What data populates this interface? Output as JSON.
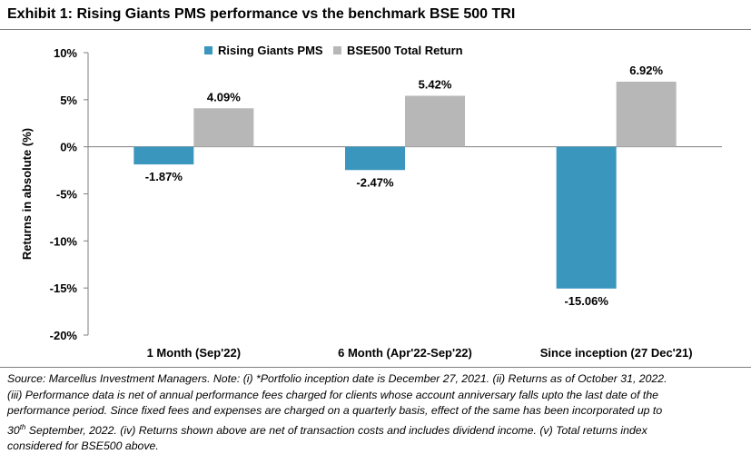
{
  "title": "Exhibit 1: Rising Giants PMS performance vs the benchmark BSE 500 TRI",
  "chart_data": {
    "type": "bar",
    "categories": [
      "1 Month (Sep'22)",
      "6 Month (Apr'22-Sep'22)",
      "Since inception (27 Dec'21)"
    ],
    "series": [
      {
        "name": "Rising Giants PMS",
        "values": [
          -1.87,
          -2.47,
          -15.06
        ],
        "labels": [
          "-1.87%",
          "-2.47%",
          "-15.06%"
        ],
        "color": "#3a96bd"
      },
      {
        "name": "BSE500 Total Return",
        "values": [
          4.09,
          5.42,
          6.92
        ],
        "labels": [
          "4.09%",
          "5.42%",
          "6.92%"
        ],
        "color": "#b7b7b7"
      }
    ],
    "ylabel": "Returns  in absolute (%)",
    "ylim": [
      -20,
      10
    ],
    "yticks": [
      10,
      5,
      0,
      -5,
      -10,
      -15,
      -20
    ],
    "ytick_labels": [
      "10%",
      "5%",
      "0%",
      "-5%",
      "-10%",
      "-15%",
      "-20%"
    ],
    "legend_position": "top",
    "grid": false
  },
  "source_note": {
    "line1": "Source: Marcellus Investment Managers. Note: (i) *Portfolio inception date is December 27, 2021. (ii) Returns as of October 31, 2022.",
    "line2": "(iii) Performance data is net of annual performance fees charged for clients whose account anniversary falls upto the last date of the",
    "line3": "performance period. Since fixed fees and expenses are charged on a quarterly basis, effect of the same has been incorporated up to",
    "line4_prefix": "30",
    "line4_sup": "th",
    "line4_rest": " September, 2022. (iv) Returns shown above are net of transaction costs and includes dividend income. (v) Total returns index",
    "line5": "considered for BSE500 above."
  }
}
